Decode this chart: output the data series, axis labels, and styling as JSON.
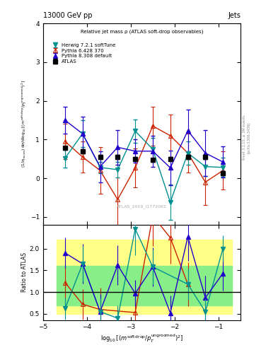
{
  "title_top_left": "13000 GeV pp",
  "title_top_right": "Jets",
  "plot_title": "Relative jet mass ρ (ATLAS soft-drop observables)",
  "watermark": "ATLAS_2019_I1772062",
  "rivet_label": "Rivet 3.1.10, ≥ 3M events",
  "arxiv_label": "[arXiv:1306.3436]",
  "x_centers": [
    -4.5,
    -4.1,
    -3.7,
    -3.3,
    -2.9,
    -2.5,
    -2.1,
    -1.7,
    -1.3,
    -0.9
  ],
  "x_edges": [
    -4.7,
    -4.3,
    -3.9,
    -3.5,
    -3.1,
    -2.7,
    -2.3,
    -1.9,
    -1.5,
    -1.1,
    -0.7
  ],
  "atlas_y": [
    0.78,
    0.7,
    0.55,
    0.55,
    0.5,
    0.47,
    0.5,
    0.55,
    0.55,
    0.13
  ],
  "atlas_yerr": [
    0.05,
    0.05,
    0.05,
    0.05,
    0.05,
    0.05,
    0.05,
    0.05,
    0.05,
    0.05
  ],
  "herwig_y": [
    0.52,
    1.15,
    0.28,
    0.22,
    1.22,
    0.75,
    -0.62,
    0.65,
    0.3,
    0.28
  ],
  "herwig_yerr": [
    0.25,
    0.35,
    0.15,
    0.2,
    0.3,
    0.3,
    0.45,
    0.3,
    0.25,
    0.25
  ],
  "pythia6_y": [
    0.95,
    0.55,
    0.2,
    -0.55,
    0.27,
    1.35,
    1.1,
    0.65,
    -0.1,
    0.2
  ],
  "pythia6_yerr": [
    0.45,
    0.4,
    0.6,
    0.9,
    0.5,
    0.5,
    0.55,
    0.5,
    0.6,
    0.5
  ],
  "pythia8_y": [
    1.5,
    1.15,
    0.3,
    0.8,
    0.7,
    0.7,
    0.27,
    1.23,
    0.65,
    0.42
  ],
  "pythia8_yerr": [
    0.35,
    0.45,
    0.4,
    0.45,
    0.3,
    0.4,
    0.45,
    0.55,
    0.6,
    0.4
  ],
  "ratio_herwig": [
    0.62,
    1.65,
    0.55,
    0.4,
    2.45,
    1.58,
    null,
    1.18,
    0.55,
    2.0
  ],
  "ratio_herwig_yerr": [
    0.25,
    0.4,
    0.3,
    0.3,
    0.6,
    0.4,
    0,
    0.35,
    0.3,
    0.3
  ],
  "ratio_pythia6": [
    1.22,
    0.72,
    0.6,
    null,
    0.53,
    2.75,
    2.25,
    1.18,
    null,
    null
  ],
  "ratio_pythia6_yerr": [
    0.45,
    0.35,
    0.5,
    0,
    0.5,
    0.7,
    0.6,
    0.5,
    0,
    0
  ],
  "ratio_pythia8": [
    1.9,
    1.65,
    0.55,
    1.62,
    0.97,
    1.58,
    0.52,
    2.27,
    0.87,
    1.43
  ],
  "ratio_pythia8_yerr": [
    0.35,
    0.45,
    0.4,
    0.45,
    0.3,
    0.45,
    0.4,
    0.55,
    0.5,
    0.4
  ],
  "color_herwig": "#009090",
  "color_pythia6": "#cc2200",
  "color_pythia8": "#2200cc",
  "color_atlas": "black",
  "ylim_main": [
    -1.2,
    4.0
  ],
  "ylim_ratio": [
    0.35,
    2.55
  ],
  "xlim": [
    -5.0,
    -0.5
  ],
  "yticks_main": [
    -1,
    0,
    1,
    2,
    3,
    4
  ],
  "yticks_ratio": [
    0.5,
    1.0,
    1.5,
    2.0
  ],
  "color_yellow": "#ffff88",
  "color_green": "#88ee88"
}
